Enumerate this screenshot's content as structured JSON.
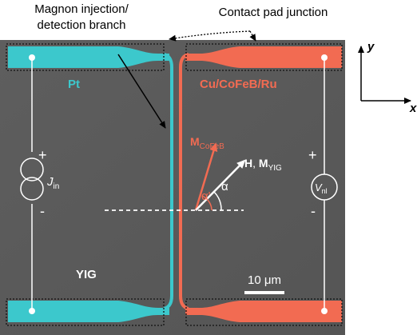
{
  "labels": {
    "magnon_branch_line1": "Magnon injection/",
    "magnon_branch_line2": "detection branch",
    "contact_pad": "Contact pad junction",
    "pt": "Pt",
    "stack": "Cu/CoFeB/Ru",
    "yig": "YIG",
    "m_cofeb_main": "M",
    "m_cofeb_sub": "CoFeB",
    "h_main": "H",
    "h_sep": ", ",
    "m_yig_main": "M",
    "m_yig_sub": "YIG",
    "alpha": "α",
    "alpha_prime": "α'",
    "j_in_main": "J",
    "j_in_sub": "in",
    "v_nl_main": "V",
    "v_nl_sub": "nl",
    "plus": "+",
    "minus": "-",
    "scalebar": "10 μm",
    "axis_y": "y",
    "axis_x": "x"
  },
  "colors": {
    "pt": "#3cc8cc",
    "stack": "#f26b52",
    "substrate": "#5a5a5a",
    "annotation_white": "#ffffff",
    "text_black": "#000000"
  },
  "icons": {
    "current_source": "double-circle-current-source-icon",
    "voltmeter": "circle-voltmeter-icon"
  }
}
